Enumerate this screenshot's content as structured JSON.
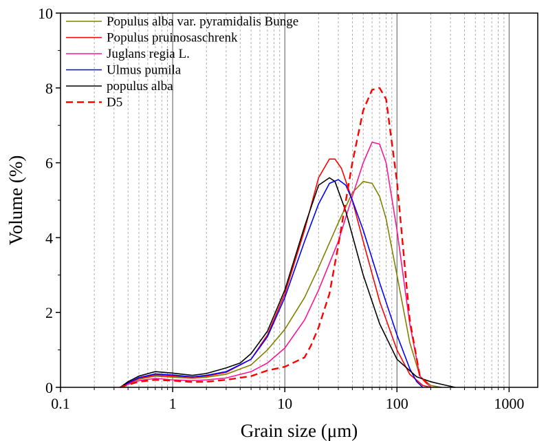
{
  "chart_data": {
    "type": "line",
    "xlabel": "Grain size (μm)",
    "ylabel": "Volume (%)",
    "xscale": "log",
    "xlim": [
      0.1,
      1800
    ],
    "ylim": [
      0,
      10
    ],
    "x_ticks": [
      0.1,
      1,
      10,
      100,
      1000
    ],
    "x_tick_labels": [
      "0.1",
      "1",
      "10",
      "100",
      "1000"
    ],
    "y_ticks": [
      0,
      2,
      4,
      6,
      8,
      10
    ],
    "y_tick_labels": [
      "0",
      "2",
      "4",
      "6",
      "8",
      "10"
    ],
    "grid": "vertical minor and major lines on x axis",
    "legend_position": "top-left",
    "series": [
      {
        "name": "Populus alba var. pyramidalis Bunge",
        "color": "#808000",
        "dash": "solid",
        "x": [
          0.34,
          0.4,
          0.5,
          0.7,
          1.0,
          1.5,
          2.0,
          3.0,
          5.0,
          7.0,
          10,
          15,
          20,
          30,
          40,
          50,
          60,
          70,
          80,
          100,
          130,
          160,
          200,
          250
        ],
        "y": [
          0.0,
          0.1,
          0.22,
          0.3,
          0.27,
          0.24,
          0.27,
          0.35,
          0.6,
          1.0,
          1.55,
          2.4,
          3.2,
          4.4,
          5.2,
          5.5,
          5.45,
          5.1,
          4.5,
          3.0,
          1.2,
          0.3,
          0.05,
          0.0
        ]
      },
      {
        "name": "Populus pruinosaschrenk",
        "color": "#ff0000",
        "dash": "solid",
        "x": [
          0.34,
          0.4,
          0.5,
          0.7,
          1.0,
          1.5,
          2.0,
          3.0,
          5.0,
          7.0,
          10,
          15,
          20,
          25,
          28,
          32,
          40,
          50,
          70,
          100,
          130,
          170,
          200
        ],
        "y": [
          0.0,
          0.1,
          0.24,
          0.33,
          0.3,
          0.27,
          0.3,
          0.4,
          0.75,
          1.4,
          2.5,
          4.2,
          5.6,
          6.1,
          6.1,
          5.85,
          5.0,
          3.9,
          2.3,
          1.0,
          0.35,
          0.05,
          0.0
        ]
      },
      {
        "name": "Juglans regia L.",
        "color": "#ff1493",
        "dash": "solid",
        "x": [
          0.34,
          0.4,
          0.5,
          0.7,
          1.0,
          1.5,
          2.0,
          3.0,
          5.0,
          7.0,
          10,
          15,
          20,
          30,
          40,
          50,
          60,
          70,
          80,
          100,
          130,
          160,
          200
        ],
        "y": [
          0.0,
          0.08,
          0.18,
          0.24,
          0.2,
          0.18,
          0.2,
          0.25,
          0.42,
          0.65,
          1.05,
          1.8,
          2.6,
          3.9,
          5.1,
          6.0,
          6.55,
          6.5,
          6.0,
          4.2,
          1.7,
          0.3,
          0.0
        ]
      },
      {
        "name": "Ulmus pumila",
        "color": "#0000ff",
        "dash": "solid",
        "x": [
          0.34,
          0.4,
          0.5,
          0.7,
          1.0,
          1.5,
          2.0,
          3.0,
          5.0,
          7.0,
          10,
          15,
          20,
          25,
          30,
          35,
          40,
          50,
          70,
          100,
          130,
          150,
          170
        ],
        "y": [
          0.0,
          0.12,
          0.26,
          0.36,
          0.33,
          0.28,
          0.32,
          0.42,
          0.75,
          1.35,
          2.4,
          3.9,
          4.9,
          5.45,
          5.55,
          5.4,
          5.0,
          4.2,
          2.8,
          1.4,
          0.5,
          0.15,
          0.0
        ]
      },
      {
        "name": "populus alba",
        "color": "#000000",
        "dash": "solid",
        "x": [
          0.34,
          0.4,
          0.5,
          0.7,
          1.0,
          1.5,
          2.0,
          3.0,
          4.0,
          5.0,
          7.0,
          10,
          15,
          20,
          25,
          28,
          35,
          50,
          70,
          100,
          150,
          200,
          250,
          330
        ],
        "y": [
          0.0,
          0.15,
          0.3,
          0.42,
          0.38,
          0.32,
          0.37,
          0.52,
          0.65,
          0.9,
          1.5,
          2.6,
          4.3,
          5.4,
          5.6,
          5.5,
          4.7,
          3.0,
          1.7,
          0.75,
          0.28,
          0.15,
          0.08,
          0.0
        ]
      },
      {
        "name": "D5",
        "color": "#ff0000",
        "dash": "dashed",
        "x": [
          0.34,
          0.4,
          0.5,
          0.7,
          1.0,
          1.5,
          2.0,
          3.0,
          5.0,
          7.0,
          10,
          15,
          17,
          20,
          25,
          30,
          40,
          50,
          60,
          70,
          80,
          100,
          130,
          160,
          200
        ],
        "y": [
          0.0,
          0.07,
          0.15,
          0.2,
          0.18,
          0.14,
          0.15,
          0.2,
          0.3,
          0.45,
          0.55,
          0.8,
          1.1,
          1.6,
          2.5,
          3.8,
          6.0,
          7.4,
          7.95,
          8.0,
          7.7,
          5.5,
          1.8,
          0.3,
          0.0
        ]
      }
    ]
  }
}
